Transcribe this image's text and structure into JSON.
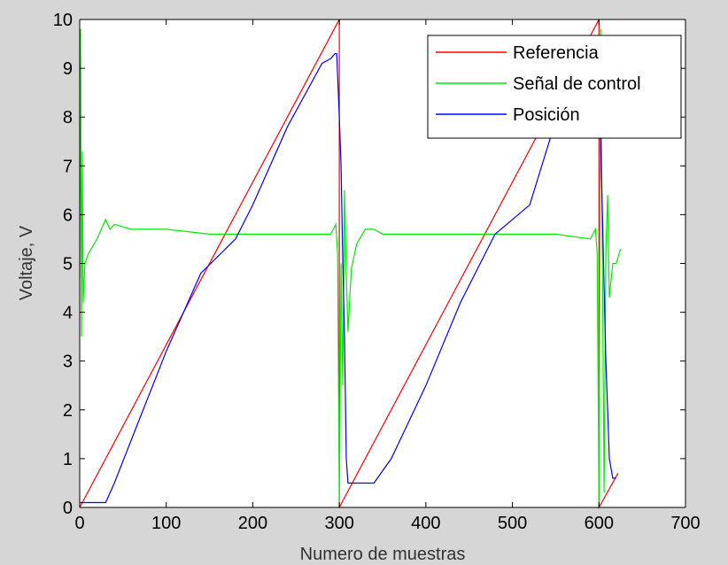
{
  "chart_data": {
    "type": "line",
    "title": "",
    "xlabel": "Numero de muestras",
    "ylabel": "Voltaje, V",
    "xlim": [
      0,
      700
    ],
    "ylim": [
      0,
      10
    ],
    "xticks": [
      "0",
      "100",
      "200",
      "300",
      "400",
      "500",
      "600",
      "700"
    ],
    "yticks": [
      "0",
      "1",
      "2",
      "3",
      "4",
      "5",
      "6",
      "7",
      "8",
      "9",
      "10"
    ],
    "grid": false,
    "legend_position": "top-right",
    "series": [
      {
        "name": "Referencia",
        "color": "#ff0000",
        "x": [
          0,
          300,
          300,
          600,
          600,
          622
        ],
        "y": [
          0.0,
          10.0,
          0.0,
          10.0,
          0.0,
          0.7
        ]
      },
      {
        "name": "Señal de control",
        "color": "#00ee00",
        "x": [
          0,
          1,
          2,
          3,
          4,
          6,
          10,
          20,
          30,
          35,
          40,
          60,
          100,
          150,
          200,
          250,
          290,
          296,
          298,
          300,
          302,
          304,
          306,
          308,
          310,
          314,
          320,
          330,
          340,
          350,
          400,
          450,
          500,
          550,
          590,
          596,
          598,
          600,
          602,
          604,
          606,
          608,
          610,
          612,
          616,
          620,
          625
        ],
        "y": [
          4.7,
          9.8,
          3.5,
          7.3,
          4.2,
          5.0,
          5.2,
          5.5,
          5.9,
          5.7,
          5.8,
          5.7,
          5.7,
          5.6,
          5.6,
          5.6,
          5.6,
          5.8,
          5.2,
          0.1,
          5.0,
          2.5,
          6.5,
          4.8,
          3.6,
          4.9,
          5.4,
          5.7,
          5.7,
          5.6,
          5.6,
          5.6,
          5.6,
          5.6,
          5.5,
          5.7,
          5.2,
          0.1,
          9.8,
          5.0,
          0.3,
          5.3,
          6.4,
          4.3,
          5.0,
          5.0,
          5.3
        ]
      },
      {
        "name": "Posición",
        "color": "#0000ff",
        "x": [
          0,
          30,
          40,
          60,
          100,
          140,
          180,
          200,
          240,
          280,
          290,
          295,
          297,
          300,
          302,
          304,
          306,
          308,
          310,
          314,
          320,
          340,
          360,
          400,
          440,
          480,
          520,
          560,
          580,
          590,
          596,
          600,
          602,
          604,
          606,
          608,
          610,
          612,
          616,
          620
        ],
        "y": [
          0.1,
          0.1,
          0.5,
          1.4,
          3.2,
          4.8,
          5.5,
          6.2,
          7.8,
          9.1,
          9.2,
          9.3,
          9.3,
          8.0,
          7.0,
          5.0,
          3.5,
          1.0,
          0.5,
          0.5,
          0.5,
          0.5,
          1.0,
          2.5,
          4.2,
          5.6,
          6.2,
          8.5,
          9.0,
          9.3,
          9.2,
          8.9,
          7.5,
          6.0,
          4.5,
          3.0,
          2.0,
          1.0,
          0.6,
          0.6
        ]
      }
    ]
  }
}
